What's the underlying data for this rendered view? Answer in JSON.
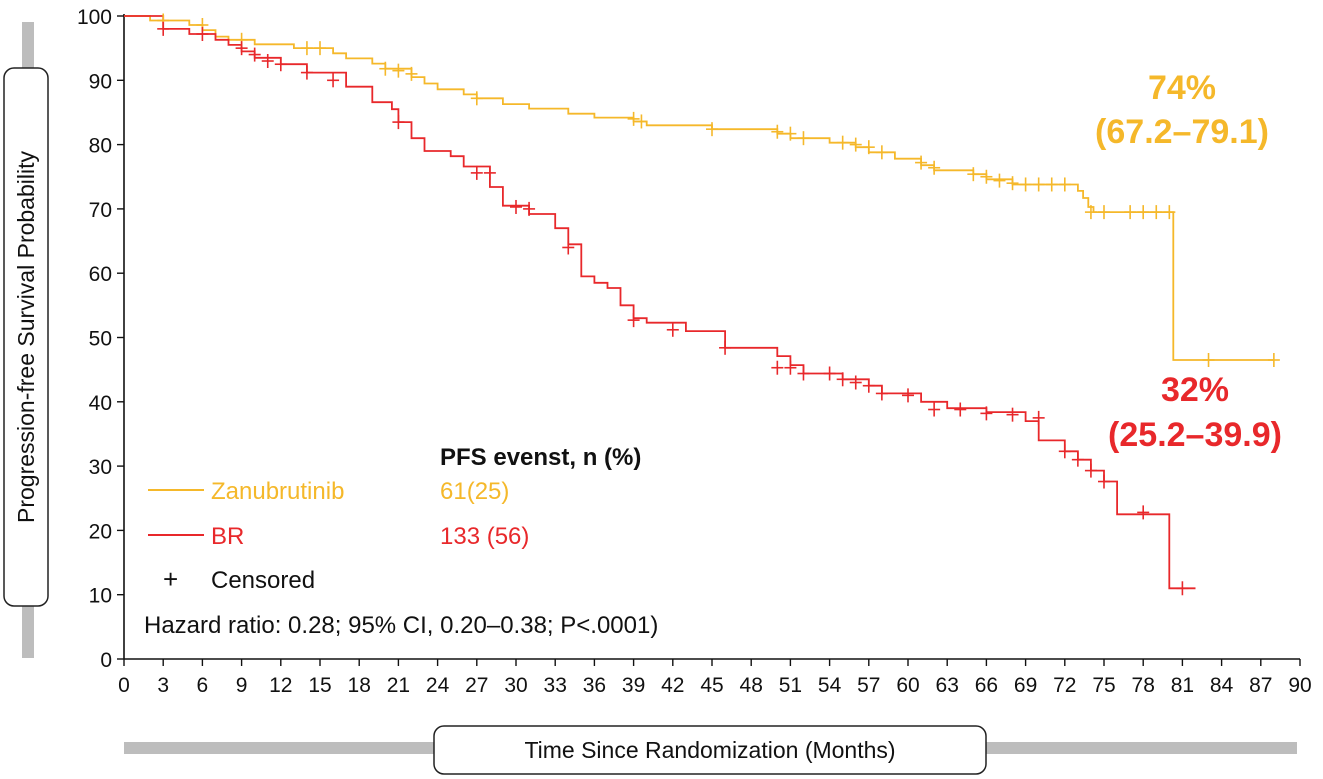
{
  "chart_data": {
    "type": "line",
    "step": true,
    "xlabel": "Time Since Randomization (Months)",
    "ylabel": "Progression-free Survival Probability",
    "xlim": [
      0,
      90
    ],
    "ylim": [
      0,
      100
    ],
    "x_ticks": [
      0,
      3,
      6,
      9,
      12,
      15,
      18,
      21,
      24,
      27,
      30,
      33,
      36,
      39,
      42,
      45,
      48,
      51,
      54,
      57,
      60,
      63,
      66,
      69,
      72,
      75,
      78,
      81,
      84,
      87,
      90
    ],
    "y_ticks": [
      0,
      10,
      20,
      30,
      40,
      50,
      60,
      70,
      80,
      90,
      100
    ],
    "grid": false,
    "series": [
      {
        "name": "Zanubrutinib",
        "color": "#f5b82a",
        "points": [
          [
            0,
            100
          ],
          [
            2,
            99.3
          ],
          [
            5,
            98.6
          ],
          [
            6,
            97.8
          ],
          [
            7,
            96.8
          ],
          [
            8,
            96.3
          ],
          [
            10,
            95.6
          ],
          [
            13,
            95
          ],
          [
            16,
            94.2
          ],
          [
            17,
            93.4
          ],
          [
            19,
            92.6
          ],
          [
            20,
            91.8
          ],
          [
            22,
            90.5
          ],
          [
            23,
            89.5
          ],
          [
            24,
            88.6
          ],
          [
            26,
            87.8
          ],
          [
            27,
            87.2
          ],
          [
            29,
            86.3
          ],
          [
            31,
            85.6
          ],
          [
            34,
            84.8
          ],
          [
            36,
            84.2
          ],
          [
            39,
            83.6
          ],
          [
            40,
            83
          ],
          [
            45,
            82.4
          ],
          [
            50,
            81.7
          ],
          [
            51,
            81
          ],
          [
            54,
            80.3
          ],
          [
            56,
            79.6
          ],
          [
            57,
            78.8
          ],
          [
            59,
            77.8
          ],
          [
            61,
            76.8
          ],
          [
            62,
            76
          ],
          [
            65,
            75.4
          ],
          [
            66,
            74.6
          ],
          [
            68,
            73.8
          ],
          [
            73,
            72.8
          ],
          [
            73.4,
            71.7
          ],
          [
            73.8,
            70.3
          ],
          [
            74.2,
            69.5
          ],
          [
            80.3,
            69.5
          ],
          [
            80.3,
            46.5
          ],
          [
            88,
            46.5
          ]
        ],
        "censored": [
          [
            3,
            99.3
          ],
          [
            6,
            98.6
          ],
          [
            9,
            96.3
          ],
          [
            14,
            95
          ],
          [
            15,
            95
          ],
          [
            20,
            91.8
          ],
          [
            21,
            91.5
          ],
          [
            22,
            91
          ],
          [
            27,
            87.2
          ],
          [
            39,
            84
          ],
          [
            39.6,
            83.6
          ],
          [
            45,
            82.4
          ],
          [
            50,
            82
          ],
          [
            51,
            81.7
          ],
          [
            52,
            81
          ],
          [
            55,
            80.3
          ],
          [
            56,
            80
          ],
          [
            57,
            79.6
          ],
          [
            58,
            78.8
          ],
          [
            61,
            77.2
          ],
          [
            62,
            76.4
          ],
          [
            65,
            75.4
          ],
          [
            66,
            75
          ],
          [
            67,
            74.4
          ],
          [
            68,
            74
          ],
          [
            69,
            73.8
          ],
          [
            70,
            73.8
          ],
          [
            71,
            73.8
          ],
          [
            72,
            73.8
          ],
          [
            74,
            69.5
          ],
          [
            75,
            69.5
          ],
          [
            77,
            69.5
          ],
          [
            78,
            69.5
          ],
          [
            79,
            69.5
          ],
          [
            80,
            69.5
          ],
          [
            83,
            46.5
          ],
          [
            88,
            46.5
          ]
        ]
      },
      {
        "name": "BR",
        "color": "#e8282b",
        "points": [
          [
            0,
            100
          ],
          [
            3,
            98
          ],
          [
            5,
            97.2
          ],
          [
            7,
            96.3
          ],
          [
            8,
            95.5
          ],
          [
            9,
            94.5
          ],
          [
            10,
            93.5
          ],
          [
            12,
            92.5
          ],
          [
            14,
            91.2
          ],
          [
            17,
            89
          ],
          [
            19,
            86.6
          ],
          [
            20.5,
            85.5
          ],
          [
            21,
            83.5
          ],
          [
            22,
            81
          ],
          [
            23,
            79
          ],
          [
            25,
            78.2
          ],
          [
            26,
            76.6
          ],
          [
            28,
            73.4
          ],
          [
            29,
            70.5
          ],
          [
            31,
            69.2
          ],
          [
            33,
            67
          ],
          [
            34,
            64.5
          ],
          [
            35,
            59.5
          ],
          [
            36,
            58.5
          ],
          [
            37,
            57.7
          ],
          [
            38,
            55
          ],
          [
            39,
            53
          ],
          [
            40,
            52.3
          ],
          [
            43,
            51
          ],
          [
            46,
            48.4
          ],
          [
            50,
            47.1
          ],
          [
            51,
            45.7
          ],
          [
            52,
            44.4
          ],
          [
            55,
            43.5
          ],
          [
            57,
            42.5
          ],
          [
            58,
            41.3
          ],
          [
            61,
            40
          ],
          [
            63,
            39
          ],
          [
            66,
            38.4
          ],
          [
            69,
            37
          ],
          [
            70,
            34
          ],
          [
            72,
            32.3
          ],
          [
            73,
            31
          ],
          [
            74,
            29.3
          ],
          [
            75,
            27.6
          ],
          [
            76,
            22.5
          ],
          [
            80,
            22.5
          ],
          [
            80,
            11
          ],
          [
            82,
            11
          ]
        ],
        "censored": [
          [
            3,
            98
          ],
          [
            6,
            97.2
          ],
          [
            9,
            95
          ],
          [
            10,
            94
          ],
          [
            11,
            93
          ],
          [
            12,
            92.5
          ],
          [
            14,
            91.2
          ],
          [
            16,
            90
          ],
          [
            21,
            83.5
          ],
          [
            27,
            75.6
          ],
          [
            28,
            75.6
          ],
          [
            30,
            70.3
          ],
          [
            31,
            70
          ],
          [
            34,
            64
          ],
          [
            39,
            52.7
          ],
          [
            42,
            51.2
          ],
          [
            46,
            48.4
          ],
          [
            50,
            45.3
          ],
          [
            51,
            45.3
          ],
          [
            52,
            44.4
          ],
          [
            54,
            44.4
          ],
          [
            55,
            43.5
          ],
          [
            56,
            43
          ],
          [
            57,
            42.5
          ],
          [
            58,
            41.3
          ],
          [
            60,
            41
          ],
          [
            62,
            38.8
          ],
          [
            64,
            38.8
          ],
          [
            66,
            38.2
          ],
          [
            68,
            38
          ],
          [
            70,
            37.5
          ],
          [
            72,
            32.3
          ],
          [
            73,
            31
          ],
          [
            74,
            29.3
          ],
          [
            75,
            27.6
          ],
          [
            78,
            22.8
          ],
          [
            81,
            11
          ]
        ]
      }
    ],
    "annotations": [
      {
        "text": "74%",
        "color": "#f5b82a"
      },
      {
        "text": "(67.2–79.1)",
        "color": "#f5b82a"
      },
      {
        "text": "32%",
        "color": "#e8282b"
      },
      {
        "text": "(25.2–39.9)",
        "color": "#e8282b"
      }
    ],
    "legend": {
      "header": "PFS evenst, n (%)",
      "entries": [
        {
          "label": "Zanubrutinib",
          "value": "61(25)",
          "color": "#f5b82a"
        },
        {
          "label": "BR",
          "value": "133 (56)",
          "color": "#e8282b"
        }
      ],
      "censored_symbol": "+",
      "censored_label": "Censored",
      "footnote": "Hazard ratio: 0.28; 95% CI, 0.20–0.38; P<.0001)"
    }
  }
}
